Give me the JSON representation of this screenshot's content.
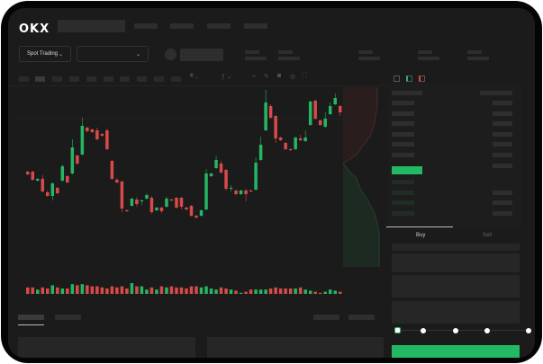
{
  "header": {
    "logo": "OKX"
  },
  "controls": {
    "market_select": "Spot Trading",
    "pair_select": "",
    "chevron": "⌄"
  },
  "toolbar_icons": [
    "candle-icon",
    "indicator-icon",
    "wave-icon",
    "pencil-icon",
    "camera-icon",
    "settings-icon",
    "fullscreen-icon"
  ],
  "orderbook": {
    "view_icons": [
      "both-sides-icon",
      "bids-only-icon",
      "asks-only-icon"
    ]
  },
  "trade_form": {
    "buy_tab": "Buy",
    "sell_tab": "Sell",
    "slider_percent": 0
  },
  "colors": {
    "up": "#26b562",
    "down": "#d84a4a",
    "background": "#1b1b1b",
    "buy_button": "#22b864"
  },
  "chart_data": {
    "type": "candlestick",
    "title": "",
    "xlabel": "",
    "ylabel": "",
    "grid": true,
    "candles": [
      [
        118,
        115,
        119,
        114
      ],
      [
        118,
        109,
        119,
        108
      ],
      [
        108,
        110,
        111,
        107
      ],
      [
        110,
        96,
        114,
        95
      ],
      [
        95,
        91,
        97,
        90
      ],
      [
        91,
        105,
        106,
        86
      ],
      [
        100,
        94,
        101,
        93
      ],
      [
        108,
        124,
        126,
        107
      ],
      [
        113,
        106,
        114,
        105
      ],
      [
        116,
        145,
        154,
        115
      ],
      [
        136,
        127,
        137,
        126
      ],
      [
        137,
        169,
        178,
        136
      ],
      [
        167,
        163,
        168,
        162
      ],
      [
        165,
        162,
        166,
        161
      ],
      [
        164,
        154,
        167,
        153
      ],
      [
        160,
        158,
        161,
        157
      ],
      [
        164,
        143,
        166,
        142
      ],
      [
        130,
        110,
        131,
        109
      ],
      [
        109,
        106,
        111,
        105
      ],
      [
        107,
        77,
        108,
        73
      ],
      [
        75,
        74,
        76,
        73
      ],
      [
        80,
        88,
        89,
        79
      ],
      [
        87,
        82,
        90,
        79
      ],
      [
        85,
        86,
        87,
        81
      ],
      [
        88,
        92,
        94,
        87
      ],
      [
        89,
        73,
        91,
        71
      ],
      [
        75,
        78,
        79,
        74
      ],
      [
        78,
        74,
        79,
        72
      ],
      [
        79,
        88,
        90,
        78
      ],
      [
        87,
        86,
        88,
        85
      ],
      [
        89,
        78,
        90,
        77
      ],
      [
        89,
        79,
        90,
        76
      ],
      [
        78,
        76,
        79,
        75
      ],
      [
        80,
        69,
        81,
        68
      ],
      [
        69,
        67,
        70,
        66
      ],
      [
        69,
        75,
        76,
        68
      ],
      [
        76,
        116,
        121,
        75
      ],
      [
        113,
        116,
        117,
        112
      ],
      [
        122,
        131,
        136,
        121
      ],
      [
        127,
        117,
        130,
        116
      ],
      [
        120,
        99,
        121,
        97
      ],
      [
        99,
        100,
        103,
        96
      ],
      [
        97,
        93,
        98,
        92
      ],
      [
        93,
        97,
        98,
        92
      ],
      [
        97,
        93,
        99,
        85
      ],
      [
        97,
        96,
        98,
        95
      ],
      [
        98,
        128,
        134,
        97
      ],
      [
        131,
        148,
        157,
        130
      ],
      [
        164,
        195,
        209,
        163
      ],
      [
        191,
        178,
        193,
        177
      ],
      [
        180,
        155,
        181,
        150
      ],
      [
        156,
        153,
        157,
        152
      ],
      [
        150,
        143,
        151,
        142
      ],
      [
        143,
        142,
        144,
        141
      ],
      [
        143,
        156,
        157,
        142
      ],
      [
        155,
        153,
        159,
        152
      ],
      [
        152,
        156,
        164,
        151
      ],
      [
        170,
        196,
        197,
        169
      ],
      [
        197,
        177,
        198,
        176
      ],
      [
        175,
        170,
        176,
        169
      ],
      [
        168,
        177,
        184,
        167
      ],
      [
        182,
        191,
        195,
        181
      ],
      [
        193,
        200,
        205,
        192
      ],
      [
        191,
        184,
        192,
        180
      ],
      [
        182,
        188,
        194,
        181
      ]
    ],
    "candle_format": [
      "open",
      "close",
      "high",
      "low"
    ],
    "volumes": [
      6,
      6,
      4,
      6,
      5,
      8,
      6,
      5,
      5,
      9,
      8,
      9,
      8,
      7,
      7,
      6,
      5,
      7,
      6,
      7,
      5,
      10,
      7,
      7,
      4,
      6,
      4,
      7,
      6,
      7,
      6,
      6,
      5,
      7,
      7,
      6,
      7,
      5,
      4,
      6,
      5,
      4,
      3,
      1,
      2,
      4,
      4,
      4,
      4,
      5,
      6,
      5,
      5,
      5,
      5,
      6,
      4,
      3,
      2,
      1,
      2,
      4,
      3,
      2,
      3
    ]
  }
}
